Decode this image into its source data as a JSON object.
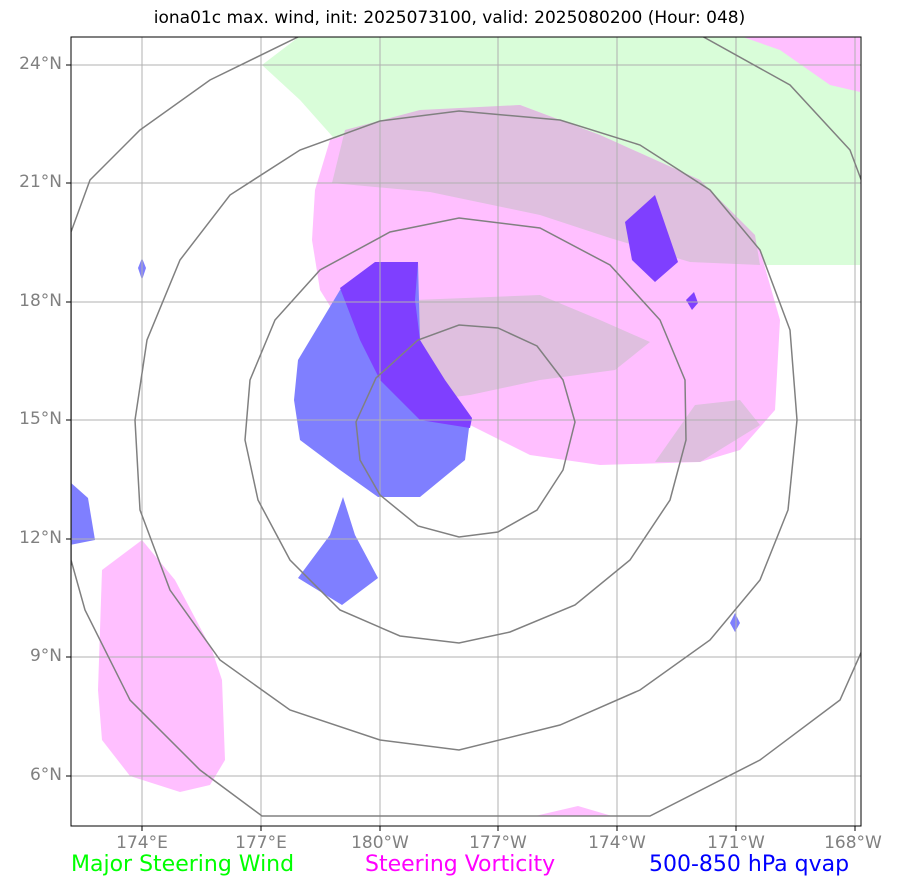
{
  "title": "iona01c max. wind, init: 2025073100, valid: 2025080200 (Hour: 048)",
  "y_ticks": [
    "24°N",
    "21°N",
    "18°N",
    "15°N",
    "12°N",
    "9°N",
    "6°N"
  ],
  "x_ticks": [
    "174°E",
    "177°E",
    "180°W",
    "177°W",
    "174°W",
    "171°W",
    "168°W"
  ],
  "legend": {
    "wind": {
      "label": "Major Steering Wind",
      "color": "#00ff00"
    },
    "vorticity": {
      "label": "Steering Vorticity",
      "color": "#ff00ff"
    },
    "qvap": {
      "label": "500-850 hPa qvap",
      "color": "#0000ff"
    }
  },
  "layers": {
    "wind_fill": "#d9fdd9",
    "vorticity_fill": "#ffbfff",
    "overlap_fill": "#dfbfdf",
    "qvap_fill": "#7f7fff",
    "qvap_strong_fill": "#7f3fff",
    "range_ring_color": "#808080",
    "grid_color": "#b0b0b0"
  }
}
